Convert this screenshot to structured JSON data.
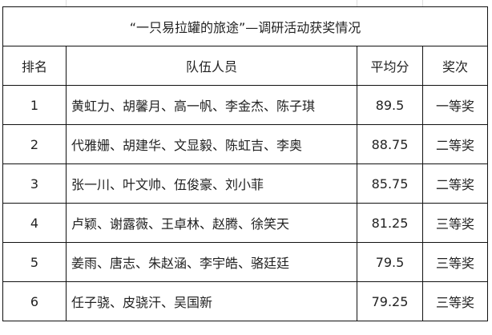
{
  "title": "“一只易拉罐的旅途”—调研活动获奖情况",
  "headers": [
    "排名",
    "队伍人员",
    "平均分",
    "奖次"
  ],
  "rows": [
    {
      "rank": "1",
      "members": "黄虹力、胡馨月、高一帆、李金杰、陈子琪",
      "score": "89.5",
      "award": "一等奖"
    },
    {
      "rank": "2",
      "members": "代雅姗、胡建华、文显毅、陈虹吉、李奥",
      "score": "88.75",
      "award": "二等奖"
    },
    {
      "rank": "3",
      "members": "张一川、叶文帅、伍俊豪、刘小菲",
      "score": "85.75",
      "award": "二等奖"
    },
    {
      "rank": "4",
      "members": "卢颖、谢露薇、王卓林、赵腾、徐笑天",
      "score": "81.25",
      "award": "三等奖"
    },
    {
      "rank": "5",
      "members": "姜雨、唐志、朱赵涵、李宇皓、骆廷廷",
      "score": "79.5",
      "award": "三等奖"
    },
    {
      "rank": "6",
      "members": "任子骁、皮骁汗、吴国新",
      "score": "79.25",
      "award": "三等奖"
    }
  ]
}
